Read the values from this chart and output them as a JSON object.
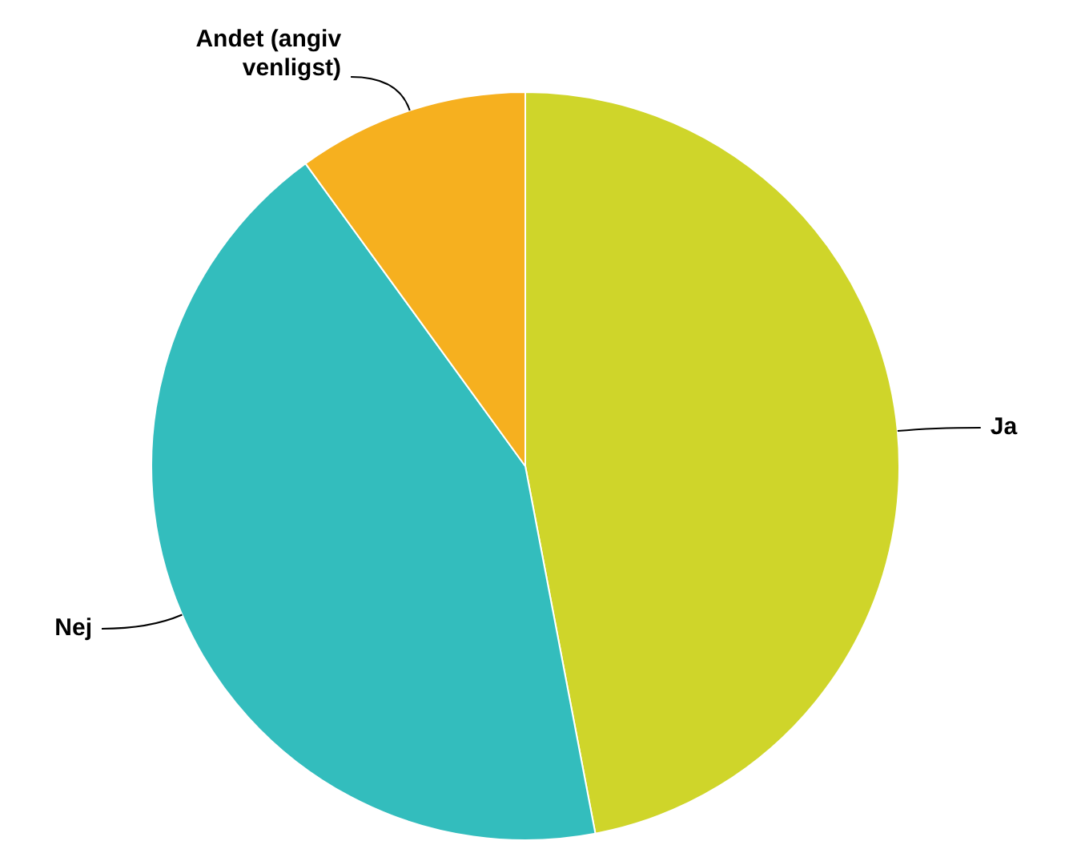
{
  "chart_data": {
    "type": "pie",
    "categories": [
      "Ja",
      "Nej",
      "Andet (angiv venligst)"
    ],
    "values": [
      47,
      43,
      10
    ],
    "colors": [
      "#cfd52a",
      "#33bdbd",
      "#f6b01f"
    ]
  }
}
